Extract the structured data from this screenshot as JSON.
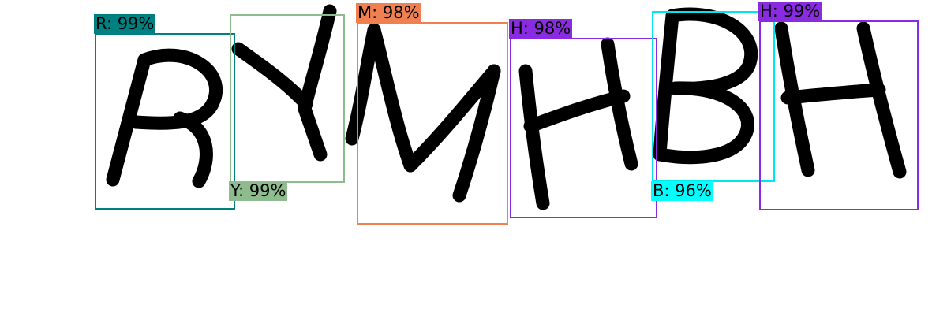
{
  "detections": [
    {
      "label": "R: 99%",
      "color": "#008080",
      "label_bg": "#008080"
    },
    {
      "label": "Y: 99%",
      "color": "#8fbc8f",
      "label_bg": "#8fbc8f"
    },
    {
      "label": "M: 98%",
      "color": "#f08050",
      "label_bg": "#f08050"
    },
    {
      "label": "H: 98%",
      "color": "#8a2be2",
      "label_bg": "#8a2be2"
    },
    {
      "label": "B: 96%",
      "color": "#00e5ee",
      "label_bg": "#00ffff"
    },
    {
      "label": "H: 99%",
      "color": "#8a2be2",
      "label_bg": "#8a2be2"
    }
  ]
}
